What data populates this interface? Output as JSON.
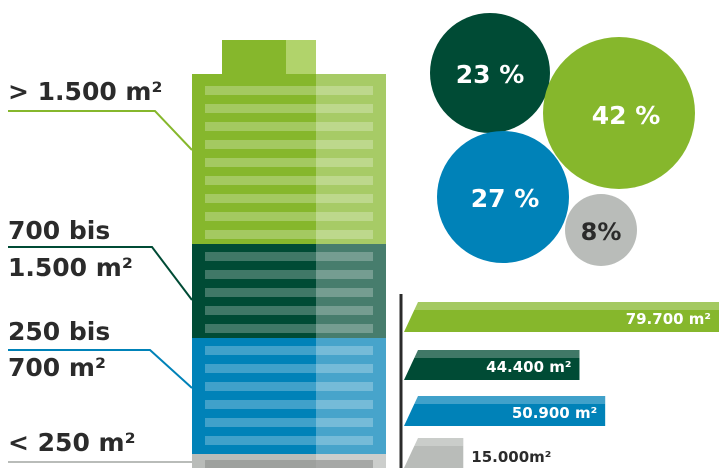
{
  "chart_data": [
    {
      "type": "pie",
      "presentation": "bubbles",
      "slices": [
        {
          "label": "23 %",
          "value": 23,
          "color": "#004b35"
        },
        {
          "label": "42 %",
          "value": 42,
          "color": "#86b72c"
        },
        {
          "label": "27 %",
          "value": 27,
          "color": "#0082b8"
        },
        {
          "label": "8%",
          "value": 8,
          "color": "#b9bcb9"
        }
      ]
    },
    {
      "type": "bar",
      "orientation": "horizontal",
      "categories": [
        "> 1.500 m²",
        "700 bis 1.500 m²",
        "250 bis 700 m²",
        "< 250 m²"
      ],
      "values": [
        79700,
        44400,
        50900,
        15000
      ],
      "value_labels": [
        "79.700 m²",
        "44.400 m²",
        "50.900 m²",
        "15.000m²"
      ],
      "colors": [
        "#86b72c",
        "#004b35",
        "#0082b8",
        "#b9bcb9"
      ]
    }
  ],
  "labels": {
    "gt1500": "> 1.500 m²",
    "r700_1500_a": "700 bis",
    "r700_1500_b": "1.500 m²",
    "r250_700_a": "250 bis",
    "r250_700_b": "700 m²",
    "lt250": "< 250 m²"
  }
}
